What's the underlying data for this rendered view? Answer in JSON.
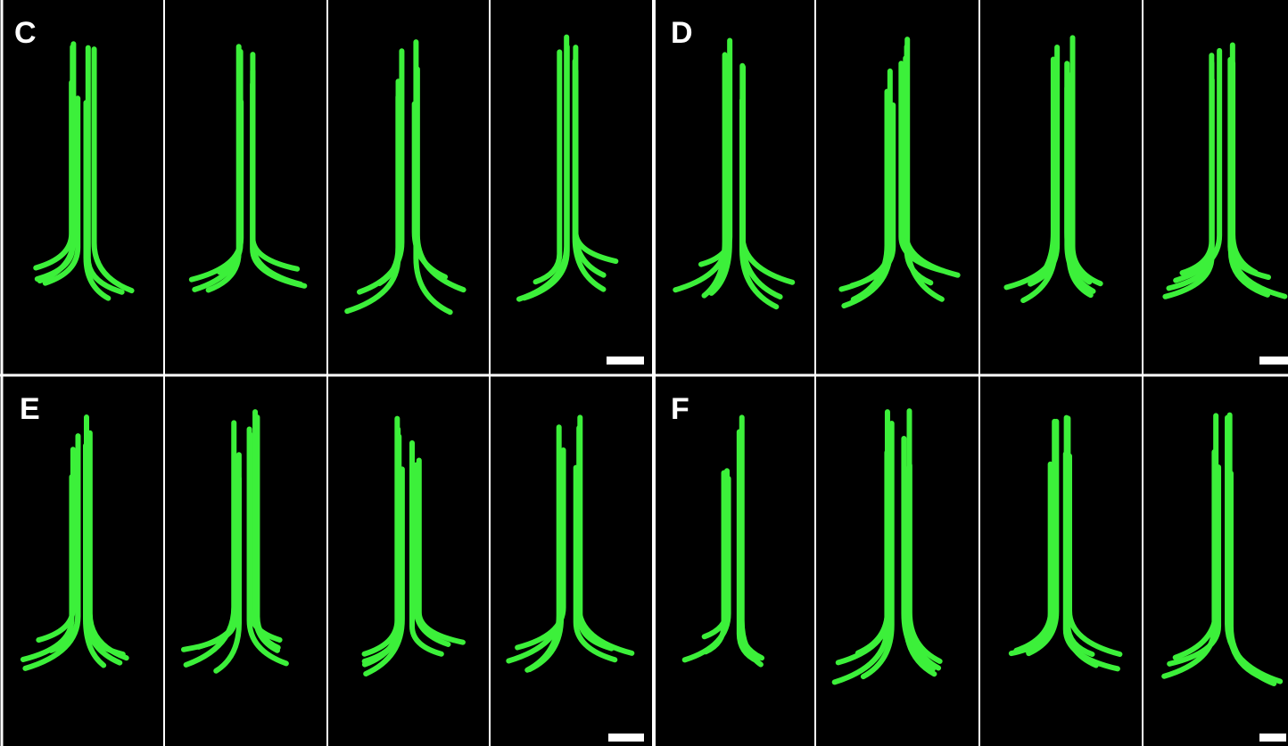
{
  "panels": [
    {
      "label": "C"
    },
    {
      "label": "D"
    },
    {
      "label": "E"
    },
    {
      "label": "F"
    }
  ]
}
